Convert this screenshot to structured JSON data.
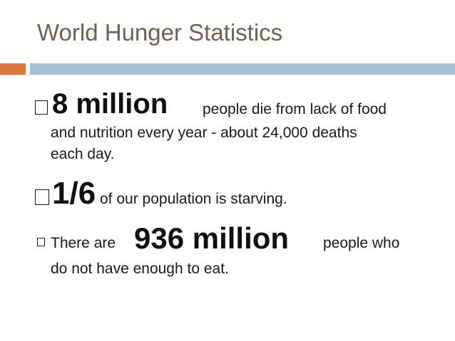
{
  "slide": {
    "title": "World Hunger Statistics",
    "colors": {
      "title": "#7a5f4f",
      "accent_bar": "#d9763e",
      "rule_bar": "#a3bfd6"
    }
  },
  "bullets": [
    {
      "highlight": "8 million",
      "text_inline": "people die from lack of food",
      "text_line2": "and nutrition every year - about 24,000 deaths",
      "text_line3": "each day."
    },
    {
      "highlight": "1/6",
      "text_inline": "of our population is starving."
    },
    {
      "prefix": "There are",
      "highlight": "936 million",
      "text_inline": "people who",
      "text_line2": "do not have enough to eat."
    }
  ]
}
